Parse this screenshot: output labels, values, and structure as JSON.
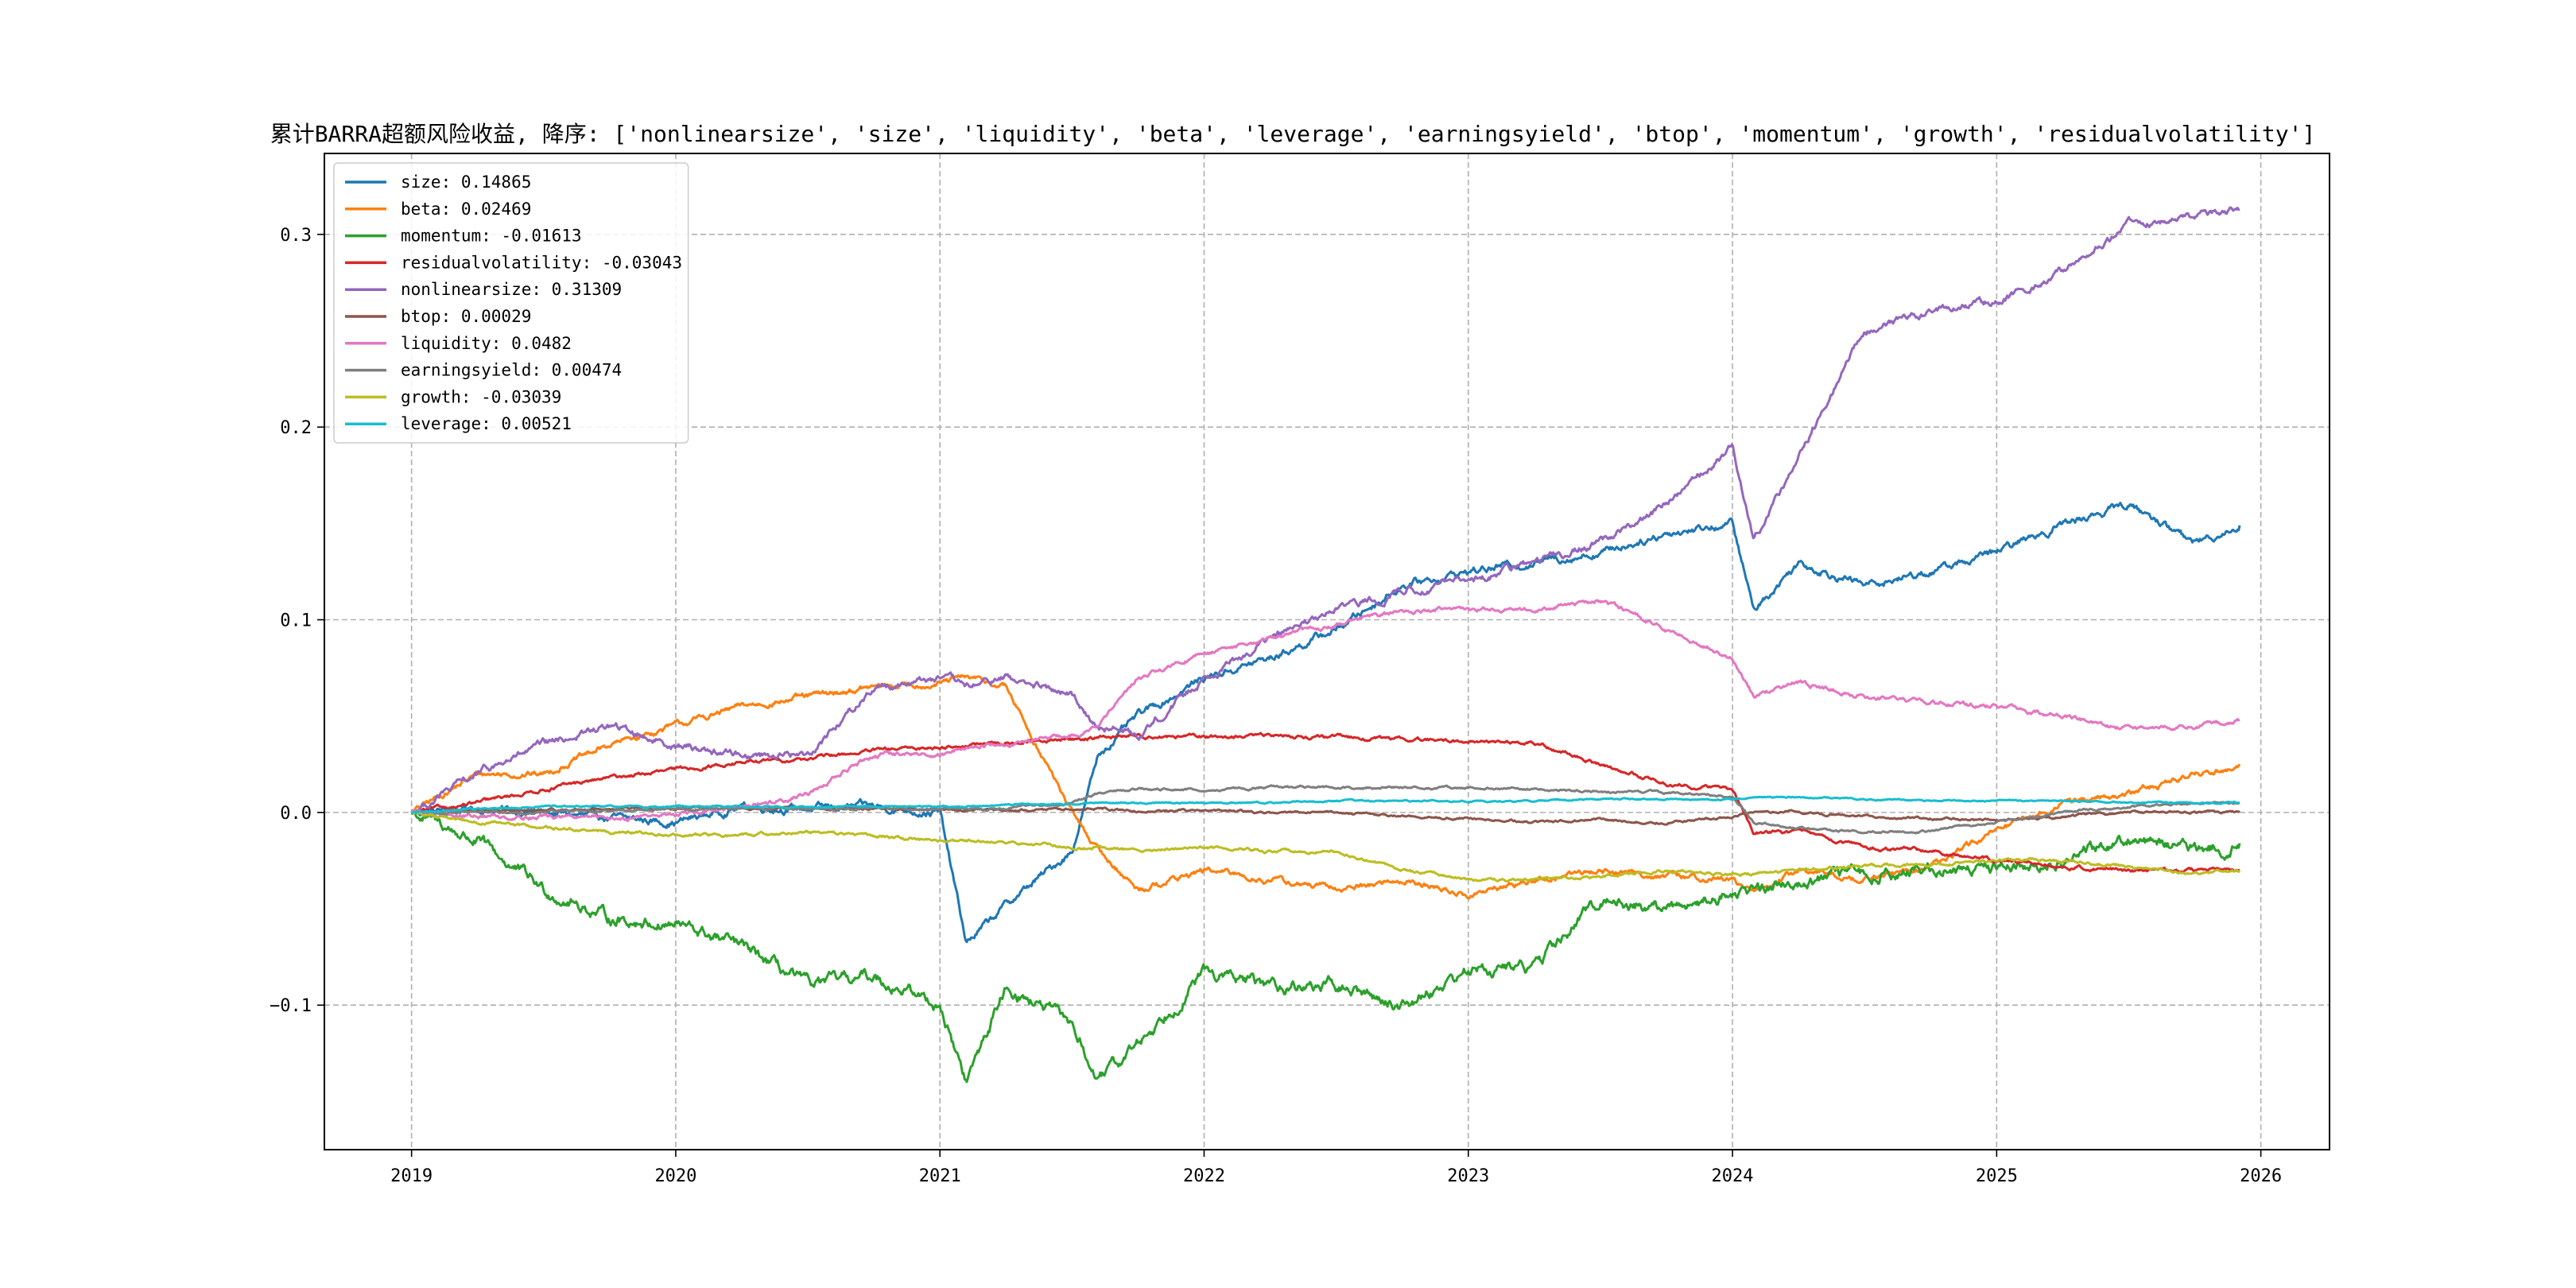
{
  "chart_data": {
    "type": "line",
    "title": "累计BARRA超额风险收益,  降序: ['nonlinearsize', 'size', 'liquidity', 'beta', 'leverage', 'earningsyield', 'btop', 'momentum', 'growth', 'residualvolatility']",
    "xlabel": "",
    "ylabel": "",
    "xlim": [
      2018.67,
      2026.26
    ],
    "ylim": [
      -0.175,
      0.342
    ],
    "x_ticks": [
      2019,
      2020,
      2021,
      2022,
      2023,
      2024,
      2025,
      2026
    ],
    "y_ticks": [
      -0.1,
      0.0,
      0.1,
      0.2,
      0.3
    ],
    "y_tick_labels": [
      "−0.1",
      "0.0",
      "0.1",
      "0.2",
      "0.3"
    ],
    "grid": true,
    "legend_position": "top-left",
    "x_knots": [
      2019.0,
      2019.25,
      2019.5,
      2019.75,
      2020.0,
      2020.25,
      2020.5,
      2020.75,
      2021.0,
      2021.1,
      2021.25,
      2021.5,
      2021.6,
      2021.75,
      2022.0,
      2022.25,
      2022.5,
      2022.75,
      2023.0,
      2023.25,
      2023.5,
      2023.75,
      2024.0,
      2024.08,
      2024.25,
      2024.5,
      2024.75,
      2025.0,
      2025.25,
      2025.5,
      2025.75,
      2025.92
    ],
    "series": [
      {
        "name": "size",
        "legend": "size: 0.14865",
        "color": "#1f77b4",
        "noise": 0.0025,
        "values": [
          0.0,
          0.002,
          0.0,
          -0.003,
          -0.005,
          0.003,
          0.002,
          0.003,
          0.0,
          -0.068,
          -0.048,
          -0.02,
          0.03,
          0.05,
          0.07,
          0.08,
          0.095,
          0.118,
          0.125,
          0.13,
          0.135,
          0.145,
          0.15,
          0.105,
          0.13,
          0.118,
          0.125,
          0.135,
          0.15,
          0.16,
          0.14,
          0.149
        ]
      },
      {
        "name": "beta",
        "legend": "beta: 0.02469",
        "color": "#ff7f0e",
        "noise": 0.002,
        "values": [
          0.0,
          0.02,
          0.02,
          0.035,
          0.045,
          0.055,
          0.06,
          0.065,
          0.067,
          0.07,
          0.065,
          0.0,
          -0.02,
          -0.04,
          -0.03,
          -0.035,
          -0.04,
          -0.035,
          -0.043,
          -0.035,
          -0.03,
          -0.033,
          -0.035,
          -0.042,
          -0.03,
          -0.035,
          -0.028,
          -0.01,
          0.005,
          0.01,
          0.02,
          0.025
        ]
      },
      {
        "name": "momentum",
        "legend": "momentum: -0.01613",
        "color": "#2ca02c",
        "noise": 0.004,
        "values": [
          0.0,
          -0.015,
          -0.04,
          -0.055,
          -0.058,
          -0.07,
          -0.09,
          -0.085,
          -0.1,
          -0.14,
          -0.09,
          -0.11,
          -0.14,
          -0.12,
          -0.083,
          -0.09,
          -0.09,
          -0.1,
          -0.082,
          -0.08,
          -0.045,
          -0.05,
          -0.042,
          -0.04,
          -0.035,
          -0.032,
          -0.03,
          -0.028,
          -0.025,
          -0.012,
          -0.02,
          -0.016
        ]
      },
      {
        "name": "residualvolatility",
        "legend": "residualvolatility: -0.03043",
        "color": "#d62728",
        "noise": 0.0012,
        "values": [
          0.0,
          0.005,
          0.012,
          0.018,
          0.022,
          0.026,
          0.028,
          0.032,
          0.034,
          0.035,
          0.036,
          0.038,
          0.039,
          0.04,
          0.039,
          0.04,
          0.039,
          0.038,
          0.037,
          0.036,
          0.025,
          0.015,
          0.012,
          -0.01,
          -0.01,
          -0.018,
          -0.02,
          -0.025,
          -0.028,
          -0.03,
          -0.03,
          -0.03
        ]
      },
      {
        "name": "nonlinearsize",
        "legend": "nonlinearsize: 0.31309",
        "color": "#9467bd",
        "noise": 0.0025,
        "values": [
          0.0,
          0.02,
          0.035,
          0.045,
          0.035,
          0.03,
          0.03,
          0.065,
          0.07,
          0.065,
          0.07,
          0.06,
          0.045,
          0.04,
          0.07,
          0.09,
          0.105,
          0.115,
          0.12,
          0.13,
          0.14,
          0.16,
          0.19,
          0.14,
          0.185,
          0.25,
          0.26,
          0.265,
          0.28,
          0.305,
          0.31,
          0.313
        ]
      },
      {
        "name": "btop",
        "legend": "btop: 0.00029",
        "color": "#8c564b",
        "noise": 0.0008,
        "values": [
          0.0,
          0.001,
          0.001,
          0.002,
          0.002,
          0.002,
          0.002,
          0.002,
          0.002,
          0.001,
          0.001,
          0.002,
          0.002,
          0.001,
          0.001,
          0.0,
          0.0,
          -0.002,
          -0.003,
          -0.005,
          -0.004,
          -0.005,
          -0.002,
          0.0,
          0.0,
          -0.002,
          -0.003,
          -0.004,
          -0.002,
          0.0,
          0.0,
          0.0
        ]
      },
      {
        "name": "liquidity",
        "legend": "liquidity: 0.0482",
        "color": "#e377c2",
        "noise": 0.0015,
        "values": [
          0.0,
          -0.002,
          -0.002,
          -0.003,
          -0.001,
          0.002,
          0.01,
          0.03,
          0.03,
          0.034,
          0.036,
          0.04,
          0.045,
          0.07,
          0.082,
          0.09,
          0.098,
          0.104,
          0.105,
          0.105,
          0.11,
          0.095,
          0.08,
          0.06,
          0.068,
          0.06,
          0.057,
          0.055,
          0.05,
          0.043,
          0.045,
          0.048
        ]
      },
      {
        "name": "earningsyield",
        "legend": "earningsyield: 0.00474",
        "color": "#7f7f7f",
        "noise": 0.0008,
        "values": [
          0.0,
          0.0,
          0.0,
          0.001,
          0.002,
          0.002,
          0.002,
          0.002,
          0.002,
          0.002,
          0.002,
          0.005,
          0.01,
          0.012,
          0.012,
          0.013,
          0.013,
          0.013,
          0.013,
          0.012,
          0.011,
          0.01,
          0.008,
          -0.005,
          -0.008,
          -0.01,
          -0.01,
          -0.005,
          0.0,
          0.003,
          0.005,
          0.005
        ]
      },
      {
        "name": "growth",
        "legend": "growth: -0.03039",
        "color": "#bcbd22",
        "noise": 0.001,
        "values": [
          0.0,
          -0.005,
          -0.008,
          -0.01,
          -0.012,
          -0.012,
          -0.01,
          -0.012,
          -0.015,
          -0.015,
          -0.015,
          -0.018,
          -0.018,
          -0.02,
          -0.018,
          -0.02,
          -0.02,
          -0.03,
          -0.035,
          -0.035,
          -0.033,
          -0.03,
          -0.032,
          -0.032,
          -0.03,
          -0.028,
          -0.027,
          -0.025,
          -0.025,
          -0.028,
          -0.032,
          -0.03
        ]
      },
      {
        "name": "leverage",
        "legend": "leverage: 0.00521",
        "color": "#17becf",
        "noise": 0.0005,
        "values": [
          0.0,
          0.002,
          0.003,
          0.003,
          0.003,
          0.003,
          0.003,
          0.003,
          0.003,
          0.003,
          0.004,
          0.004,
          0.005,
          0.005,
          0.005,
          0.005,
          0.006,
          0.006,
          0.006,
          0.006,
          0.007,
          0.007,
          0.007,
          0.008,
          0.008,
          0.007,
          0.006,
          0.006,
          0.006,
          0.005,
          0.005,
          0.005
        ]
      }
    ]
  }
}
